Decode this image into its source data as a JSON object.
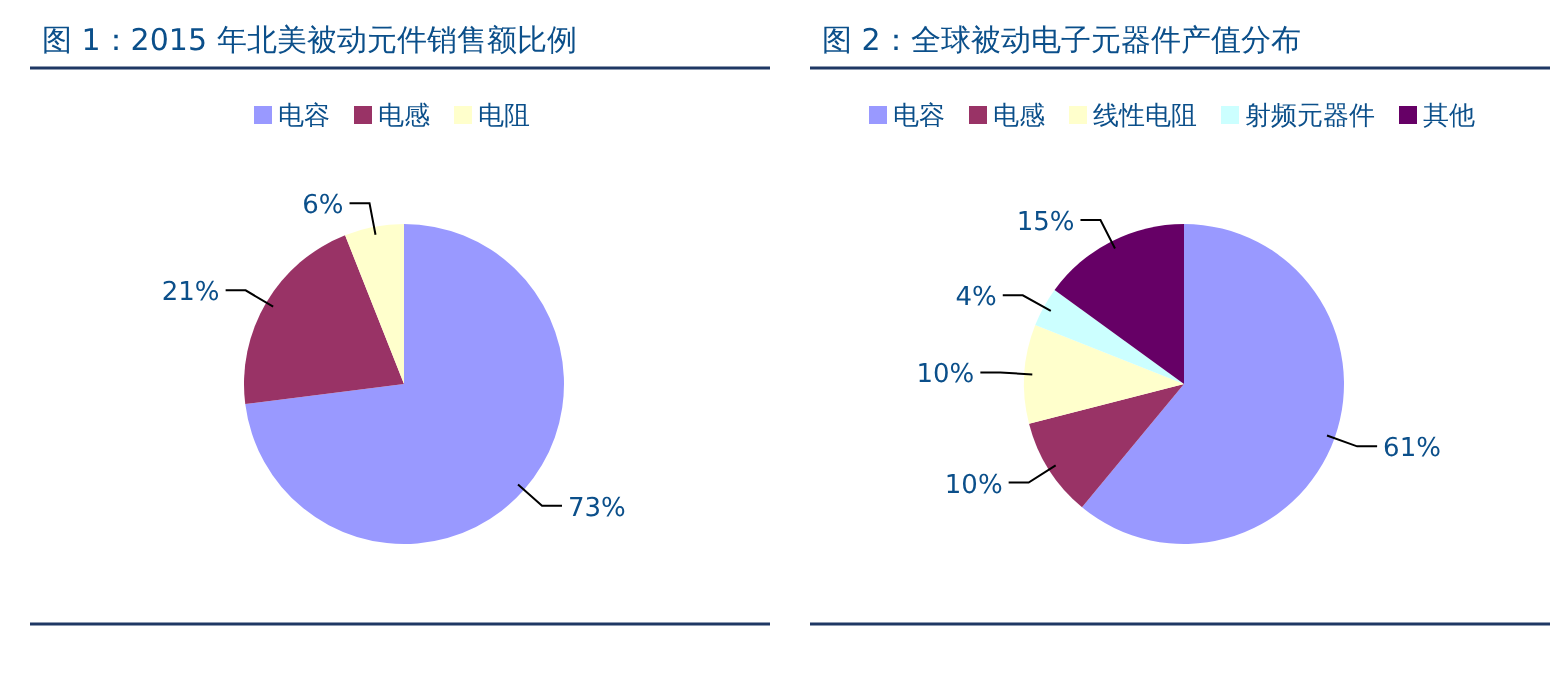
{
  "chart_data": [
    {
      "type": "pie",
      "title": "图 1：2015 年北美被动元件销售额比例",
      "categories": [
        "电容",
        "电感",
        "电阻"
      ],
      "values": [
        73,
        21,
        6
      ],
      "colors": [
        "#9999ff",
        "#993366",
        "#ffffcc"
      ],
      "value_labels": [
        "73%",
        "21%",
        "6%"
      ],
      "legend": "top"
    },
    {
      "type": "pie",
      "title": "图 2：全球被动电子元器件产值分布",
      "categories": [
        "电容",
        "电感",
        "线性电阻",
        "射频元器件",
        "其他"
      ],
      "values": [
        61,
        10,
        10,
        4,
        15
      ],
      "colors": [
        "#9999ff",
        "#993366",
        "#ffffcc",
        "#ccffff",
        "#660066"
      ],
      "value_labels": [
        "61%",
        "10%",
        "10%",
        "4%",
        "15%"
      ],
      "legend": "top"
    }
  ]
}
